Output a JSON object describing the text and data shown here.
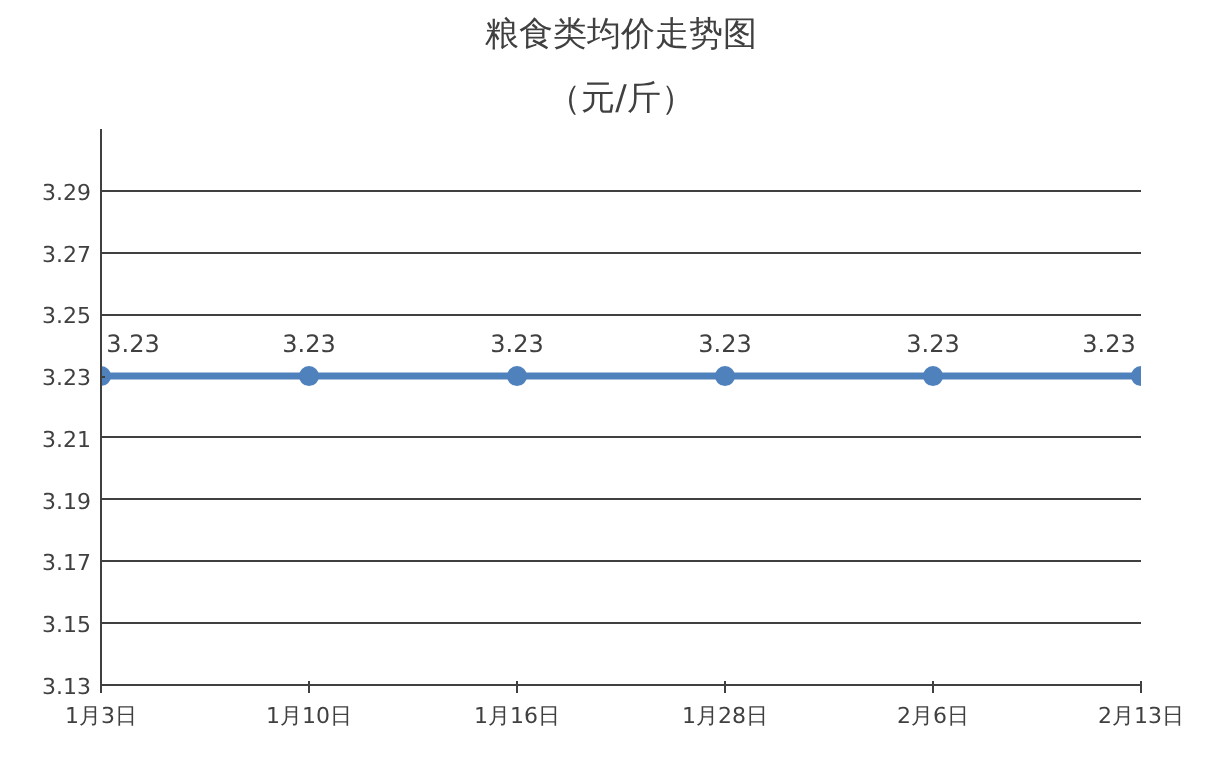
{
  "chart_data": {
    "type": "line",
    "title": "粮食类均价走势图",
    "subtitle": "（元/斤）",
    "categories": [
      "1月3日",
      "1月10日",
      "1月16日",
      "1月28日",
      "2月6日",
      "2月13日"
    ],
    "series": [
      {
        "color": "#4f81bd",
        "values": [
          3.23,
          3.23,
          3.23,
          3.23,
          3.23,
          3.23
        ]
      }
    ],
    "ylim": [
      3.13,
      3.31
    ],
    "yticks": [
      3.13,
      3.15,
      3.17,
      3.19,
      3.21,
      3.23,
      3.25,
      3.27,
      3.29
    ],
    "grid": "y",
    "marker": "circle",
    "line_style": "solid",
    "data_labels": true
  }
}
